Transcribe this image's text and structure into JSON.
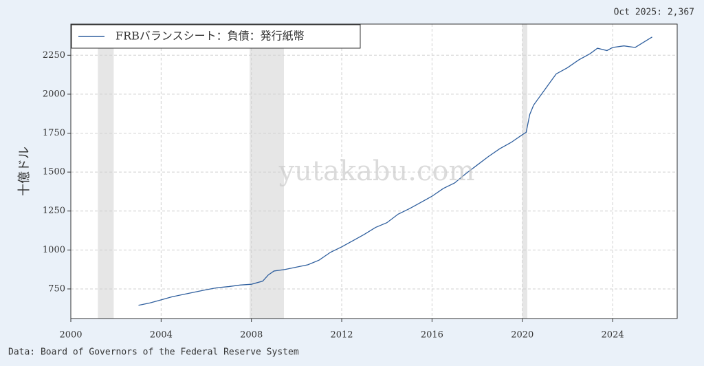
{
  "chart_data": {
    "type": "line",
    "annotation": "Oct 2025: 2,367",
    "ylabel": "十億ドル",
    "watermark": "yutakabu.com",
    "source": "Data: Board of Governors of the Federal Reserve System",
    "legend": "upper left",
    "grid": true,
    "x": [
      2003.0,
      2003.5,
      2004.0,
      2004.5,
      2005.0,
      2005.5,
      2006.0,
      2006.5,
      2007.0,
      2007.5,
      2008.0,
      2008.5,
      2008.75,
      2009.0,
      2009.5,
      2010.0,
      2010.5,
      2011.0,
      2011.5,
      2012.0,
      2012.5,
      2013.0,
      2013.5,
      2014.0,
      2014.5,
      2015.0,
      2015.5,
      2016.0,
      2016.5,
      2017.0,
      2017.5,
      2018.0,
      2018.5,
      2019.0,
      2019.5,
      2020.0,
      2020.17,
      2020.33,
      2020.5,
      2021.0,
      2021.25,
      2021.5,
      2022.0,
      2022.5,
      2023.0,
      2023.33,
      2023.75,
      2024.0,
      2024.5,
      2025.0,
      2025.5,
      2025.75
    ],
    "series": [
      {
        "name": "FRBバランスシート：負債：発行紙幣",
        "color": "#2f5f9e",
        "values": [
          645,
          660,
          680,
          700,
          715,
          730,
          745,
          758,
          765,
          775,
          780,
          800,
          840,
          865,
          875,
          890,
          905,
          935,
          985,
          1020,
          1060,
          1100,
          1145,
          1175,
          1230,
          1265,
          1305,
          1345,
          1395,
          1430,
          1490,
          1545,
          1600,
          1650,
          1690,
          1740,
          1755,
          1870,
          1930,
          2030,
          2080,
          2130,
          2170,
          2220,
          2260,
          2295,
          2280,
          2300,
          2310,
          2300,
          2345,
          2367
        ]
      }
    ],
    "recessions": [
      [
        2001.2,
        2001.9
      ],
      [
        2007.92,
        2009.44
      ],
      [
        2020.0,
        2020.22
      ]
    ],
    "xlim": [
      2000,
      2026.86
    ],
    "ylim": [
      560,
      2450
    ],
    "xticks": [
      2000,
      2004,
      2008,
      2012,
      2016,
      2020,
      2024
    ],
    "yticks": [
      750,
      1000,
      1250,
      1500,
      1750,
      2000,
      2250
    ]
  }
}
